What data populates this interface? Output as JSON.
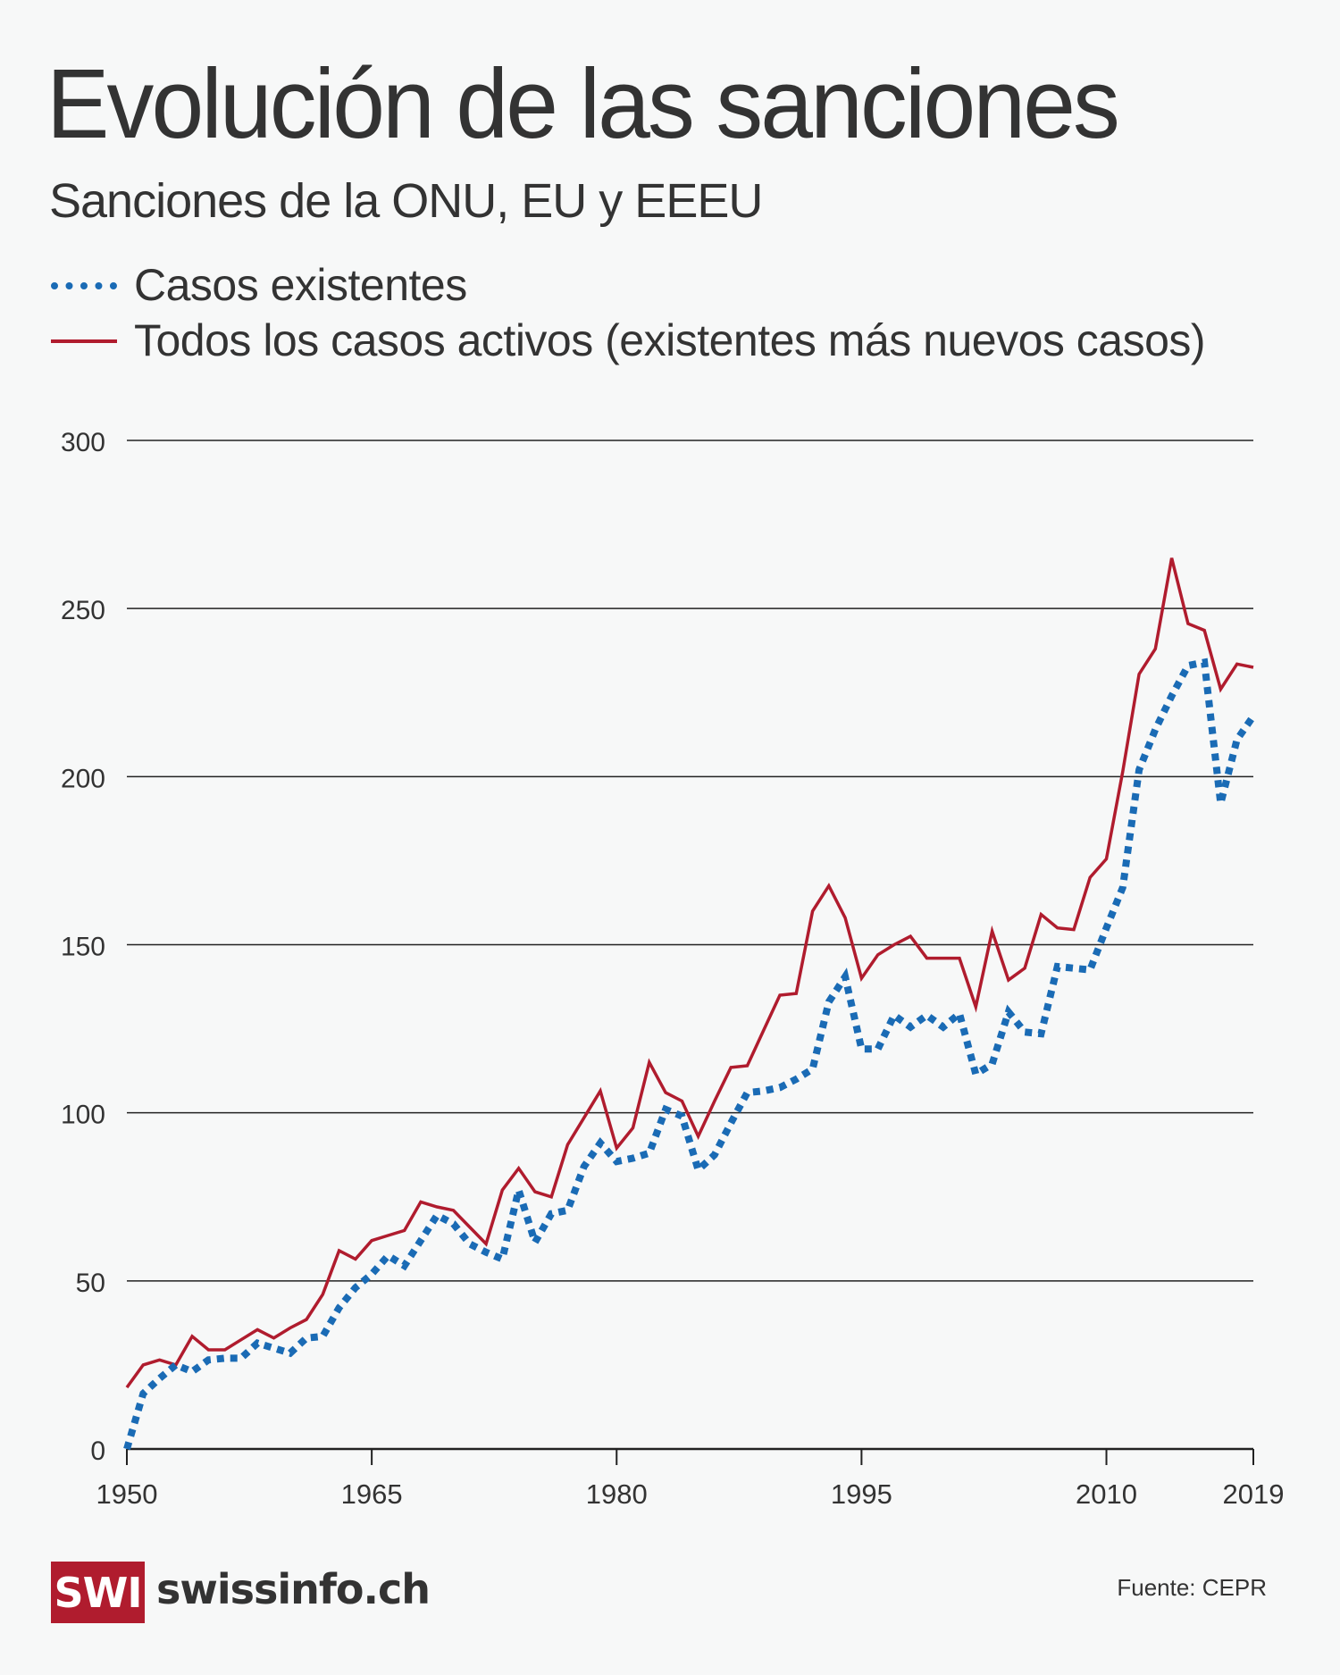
{
  "header": {
    "title": "Evolución de las sanciones",
    "subtitle": "Sanciones de la ONU, EU y EEEU"
  },
  "legend": [
    {
      "label": "Casos existentes",
      "style": "dotted",
      "color": "#1a6bb5"
    },
    {
      "label": "Todos los casos activos (existentes más nuevos casos)",
      "style": "solid",
      "color": "#b01c2e"
    }
  ],
  "footer": {
    "logo_text": "SWI",
    "site": "swissinfo.ch",
    "source": "Fuente: CEPR",
    "brand_color": "#b01c2e"
  },
  "chart_data": {
    "type": "line",
    "title": "Evolución de las sanciones",
    "subtitle": "Sanciones de la ONU, EU y EEEU",
    "xlabel": "",
    "ylabel": "",
    "xlim": [
      1950,
      2019
    ],
    "ylim": [
      0,
      300
    ],
    "x_ticks": [
      1950,
      1965,
      1980,
      1995,
      2010,
      2019
    ],
    "y_ticks": [
      0,
      50,
      100,
      150,
      200,
      250,
      300
    ],
    "grid": true,
    "legend_position": "top-left",
    "x": [
      1950,
      1951,
      1952,
      1953,
      1954,
      1955,
      1956,
      1957,
      1958,
      1959,
      1960,
      1961,
      1962,
      1963,
      1964,
      1965,
      1966,
      1967,
      1968,
      1969,
      1970,
      1971,
      1972,
      1973,
      1974,
      1975,
      1976,
      1977,
      1978,
      1979,
      1980,
      1981,
      1982,
      1983,
      1984,
      1985,
      1986,
      1987,
      1988,
      1989,
      1990,
      1991,
      1992,
      1993,
      1994,
      1995,
      1996,
      1997,
      1998,
      1999,
      2000,
      2001,
      2002,
      2003,
      2004,
      2005,
      2006,
      2007,
      2008,
      2009,
      2010,
      2011,
      2012,
      2013,
      2014,
      2015,
      2016,
      2017,
      2018,
      2019
    ],
    "series": [
      {
        "name": "Casos existentes",
        "color": "#1a6bb5",
        "style": "dotted",
        "values": [
          0,
          16.5,
          21,
          25,
          23,
          26.5,
          27,
          27,
          31.5,
          30,
          28.5,
          33,
          33.5,
          42,
          48,
          52,
          57.5,
          54.5,
          62,
          69.5,
          67,
          61,
          58.5,
          56.5,
          77,
          61.5,
          70,
          71,
          84,
          91,
          85.5,
          86.5,
          88,
          101,
          99,
          83,
          87.5,
          97,
          106,
          106.5,
          107.5,
          110,
          113,
          133,
          140.5,
          119,
          119,
          129,
          125.5,
          129,
          125.5,
          129.5,
          111.5,
          114.5,
          130,
          124,
          123.5,
          143.5,
          143,
          142.5,
          155,
          167,
          202,
          214,
          224,
          233,
          234,
          192,
          211,
          218
        ]
      },
      {
        "name": "Todos los casos activos (existentes más nuevos casos)",
        "color": "#b01c2e",
        "style": "solid",
        "values": [
          18.3,
          25,
          26.5,
          25,
          33.5,
          29.5,
          29.5,
          32.5,
          35.5,
          33,
          36,
          38.5,
          46,
          59,
          56.5,
          62,
          63.5,
          65,
          73.5,
          72,
          71,
          66,
          61,
          77,
          83.5,
          76.5,
          75,
          90.5,
          98.5,
          106.5,
          89.5,
          95.5,
          115,
          106,
          103.5,
          93,
          103.5,
          113.5,
          114,
          124.5,
          135,
          135.5,
          160,
          167.5,
          158,
          140,
          147,
          150,
          152.5,
          146,
          146,
          146,
          131.5,
          154,
          139.5,
          143,
          159,
          155,
          154.5,
          170,
          175.5,
          201.5,
          230.5,
          238,
          265,
          245.5,
          243.5,
          226,
          233.5,
          232.5
        ]
      }
    ]
  }
}
